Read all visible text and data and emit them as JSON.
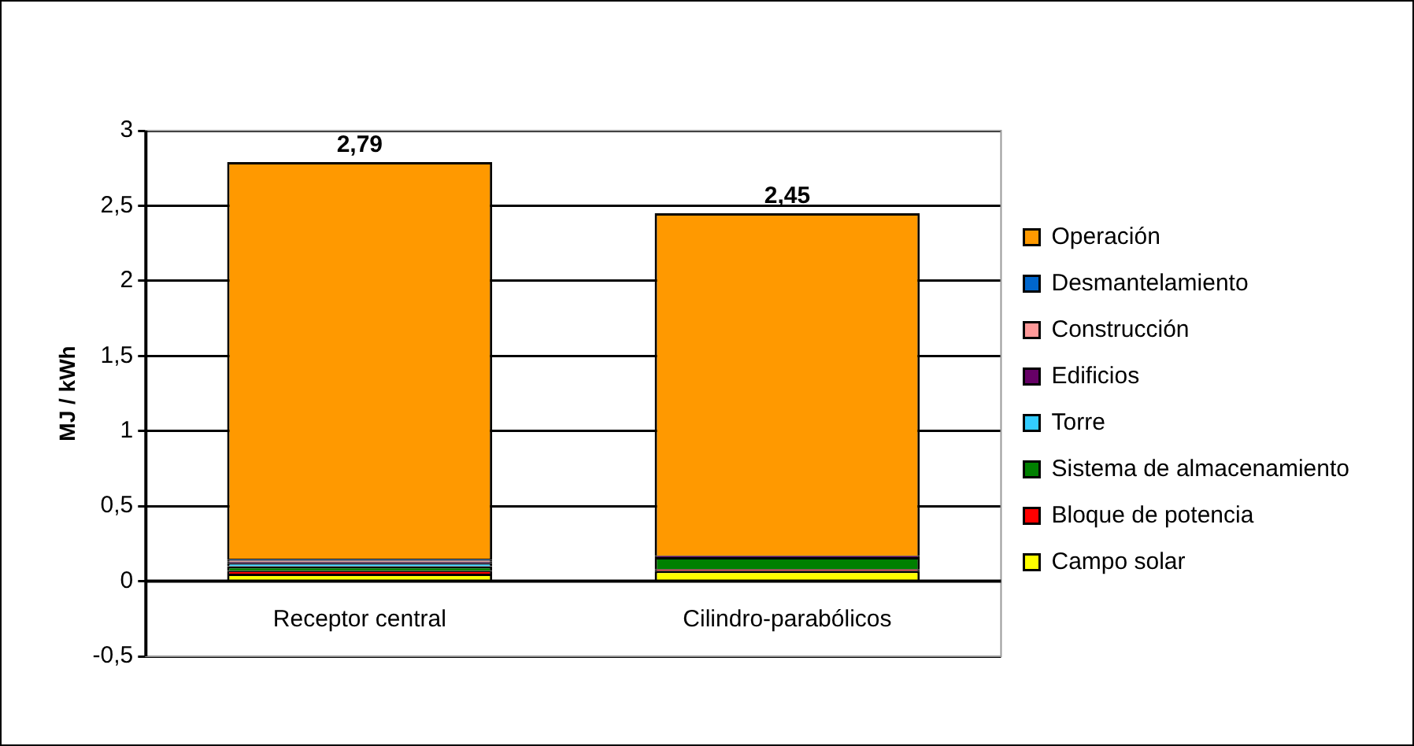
{
  "chart_data": {
    "type": "bar",
    "stacked": true,
    "ylabel": "MJ / kWh",
    "categories": [
      "Receptor central",
      "Cilindro-parabólicos"
    ],
    "series": [
      {
        "name": "Campo solar",
        "color": "#ffff00",
        "values": [
          0.05,
          0.07
        ]
      },
      {
        "name": "Bloque de potencia",
        "color": "#ff0000",
        "values": [
          0.02,
          0.01
        ]
      },
      {
        "name": "Sistema de almacenamiento",
        "color": "#008000",
        "values": [
          0.03,
          0.08
        ]
      },
      {
        "name": "Torre",
        "color": "#33ccff",
        "values": [
          0.02,
          0
        ]
      },
      {
        "name": "Edificios",
        "color": "#660066",
        "values": [
          0.01,
          0.01
        ]
      },
      {
        "name": "Construcción",
        "color": "#ff9999",
        "values": [
          0.01,
          0
        ]
      },
      {
        "name": "Desmantelamiento",
        "color": "#0066cc",
        "values": [
          0.01,
          0
        ]
      },
      {
        "name": "Operación",
        "color": "#ff9900",
        "values": [
          2.64,
          2.28
        ]
      }
    ],
    "totals": [
      "2,79",
      "2,45"
    ],
    "ylim": [
      -0.5,
      3
    ],
    "yticks": [
      {
        "value": -0.5,
        "label": "-0,5"
      },
      0,
      {
        "value": 0.5,
        "label": "0,5"
      },
      1,
      {
        "value": 1.5,
        "label": "1,5"
      },
      2,
      {
        "value": 2.5,
        "label": "2,5"
      },
      3
    ],
    "grid": "y",
    "legend": "right"
  }
}
